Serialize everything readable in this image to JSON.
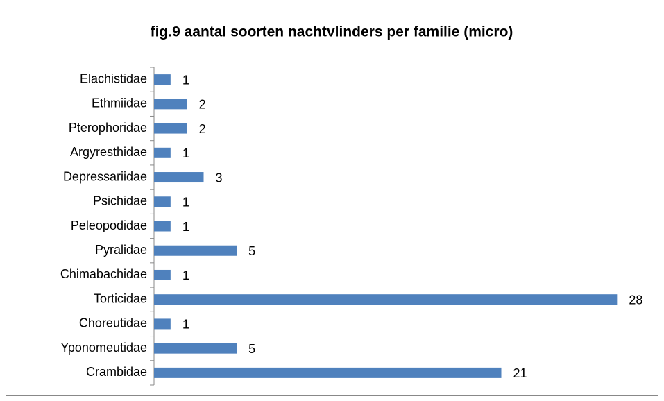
{
  "chart_data": {
    "type": "bar",
    "orientation": "horizontal",
    "title": "fig.9 aantal soorten nachtvlinders per familie (micro)",
    "categories": [
      "Elachistidae",
      "Ethmiidae",
      "Pterophoridae",
      "Argyresthidae",
      "Depressariidae",
      "Psichidae",
      "Peleopodidae",
      "Pyralidae",
      "Chimabachidae",
      "Torticidae",
      "Choreutidae",
      "Yponomeutidae",
      "Crambidae"
    ],
    "values": [
      1,
      2,
      2,
      1,
      3,
      1,
      1,
      5,
      1,
      28,
      1,
      5,
      21
    ],
    "color": "#4f81bd",
    "xlim": [
      0,
      30
    ]
  }
}
